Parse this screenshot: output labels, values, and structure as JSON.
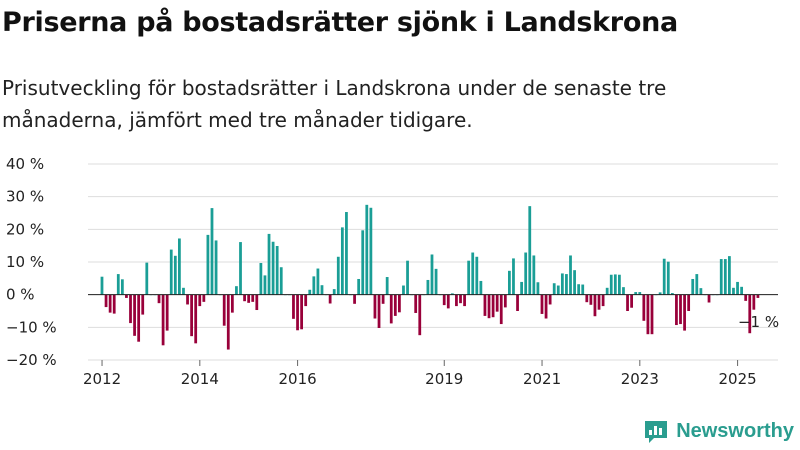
{
  "title": "Priserna på bostadsrätter sjönk i Landskrona",
  "subtitle": "Prisutveckling för bostadsrätter i Landskrona under de senaste tre månaderna, jämfört med tre månader tidigare.",
  "brand": {
    "name": "Newsworthy",
    "color": "#2a9d8f"
  },
  "colors": {
    "positive": "#1a9e96",
    "negative": "#99003a",
    "grid": "#dddddd",
    "baseline": "#222222"
  },
  "chart_data": {
    "type": "bar",
    "title": "",
    "xlabel": "",
    "ylabel": "",
    "ylim": [
      -20,
      40
    ],
    "yticks": [
      -20,
      -10,
      0,
      10,
      20,
      30,
      40
    ],
    "ytick_labels": [
      "−20 %",
      "−10 %",
      "0 %",
      "10 %",
      "20 %",
      "30 %",
      "40 %"
    ],
    "xticks": [
      2012,
      2014,
      2016,
      2019,
      2021,
      2023,
      2025
    ],
    "xtick_labels": [
      "2012",
      "2014",
      "2016",
      "2019",
      "2021",
      "2023",
      "2025"
    ],
    "grid": true,
    "frequency": "monthly",
    "start": "2012-01",
    "end": "2025-06",
    "values": [
      5.5,
      -3.8,
      -5.5,
      -5.8,
      6.3,
      4.7,
      -1,
      -8.7,
      -12.6,
      -14.4,
      -6.1,
      9.8,
      0,
      0,
      -2.6,
      -15.5,
      -11,
      13.8,
      11.9,
      17.2,
      2.1,
      -3,
      -12.7,
      -14.9,
      -3.5,
      -2.2,
      18.3,
      26.5,
      16.6,
      0,
      -9.5,
      -16.8,
      -5.5,
      2.6,
      16.1,
      -2,
      -2.5,
      -2.2,
      -4.7,
      9.7,
      5.9,
      18.6,
      16.2,
      14.9,
      8.4,
      0,
      0,
      -7.4,
      -10.9,
      -10.6,
      -3.5,
      1.5,
      5.6,
      8,
      2.9,
      0,
      -2.7,
      1.7,
      11.6,
      20.6,
      25.3,
      0,
      -2.8,
      4.8,
      19.7,
      27.5,
      26.6,
      -7.3,
      -10.2,
      -2.8,
      5.4,
      -8.8,
      -6.5,
      -5.4,
      2.8,
      10.4,
      0,
      -5.6,
      -12.4,
      0,
      4.5,
      12.3,
      7.9,
      0,
      -3.2,
      -4.2,
      0.4,
      -3.5,
      -2.6,
      -3.5,
      10.4,
      12.9,
      11.6,
      4.2,
      -6.5,
      -7.2,
      -6.9,
      -5.2,
      -9,
      -3.9,
      7.3,
      11.1,
      -5,
      3.9,
      12.9,
      27.1,
      12,
      3.8,
      -5.9,
      -7.3,
      -3,
      3.5,
      2.8,
      6.5,
      6.3,
      12,
      7.5,
      3.2,
      3.1,
      -2.3,
      -3.1,
      -6.6,
      -4.6,
      -3.5,
      2.1,
      6.1,
      6.2,
      6.1,
      2.3,
      -5,
      -4,
      0.8,
      0.8,
      -8,
      -12.1,
      -12.1,
      0,
      0.7,
      11,
      10.1,
      0.5,
      -9.3,
      -9,
      -11,
      -5,
      4.8,
      6.3,
      2,
      0,
      -2.4,
      0,
      0,
      10.9,
      10.9,
      11.8,
      2.1,
      3.9,
      2.4,
      -1.9,
      -11.8,
      -4.6,
      -1.0
    ],
    "annotation": {
      "text": "−1 %",
      "date": "2025-06",
      "value": -1.0
    }
  }
}
